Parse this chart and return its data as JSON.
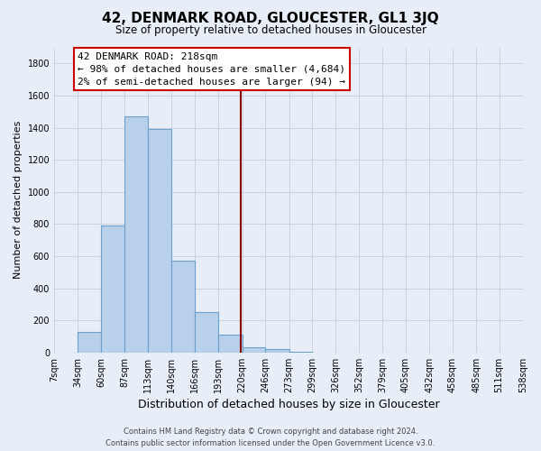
{
  "title": "42, DENMARK ROAD, GLOUCESTER, GL1 3JQ",
  "subtitle": "Size of property relative to detached houses in Gloucester",
  "xlabel": "Distribution of detached houses by size in Gloucester",
  "ylabel": "Number of detached properties",
  "bin_edges": [
    7,
    34,
    60,
    87,
    113,
    140,
    166,
    193,
    220,
    246,
    273,
    299,
    326,
    352,
    379,
    405,
    432,
    458,
    485,
    511,
    538
  ],
  "bin_counts": [
    0,
    130,
    790,
    1470,
    1390,
    570,
    250,
    110,
    30,
    20,
    5,
    0,
    0,
    0,
    0,
    0,
    0,
    0,
    0,
    0
  ],
  "bar_color": "#b8d0ea",
  "bar_edge_color": "#6aa0cc",
  "property_line_x": 218,
  "property_line_color": "#8b0000",
  "annotation_box_edge_color": "#cc0000",
  "annotation_line1": "42 DENMARK ROAD: 218sqm",
  "annotation_line2": "← 98% of detached houses are smaller (4,684)",
  "annotation_line3": "2% of semi-detached houses are larger (94) →",
  "ylim": [
    0,
    1900
  ],
  "footer_line1": "Contains HM Land Registry data © Crown copyright and database right 2024.",
  "footer_line2": "Contains public sector information licensed under the Open Government Licence v3.0.",
  "background_color": "#e8eef8",
  "grid_color": "#c5cdd8",
  "title_fontsize": 11,
  "subtitle_fontsize": 8.5,
  "xlabel_fontsize": 9,
  "ylabel_fontsize": 8,
  "tick_fontsize": 7,
  "footer_fontsize": 6,
  "annotation_fontsize": 8
}
